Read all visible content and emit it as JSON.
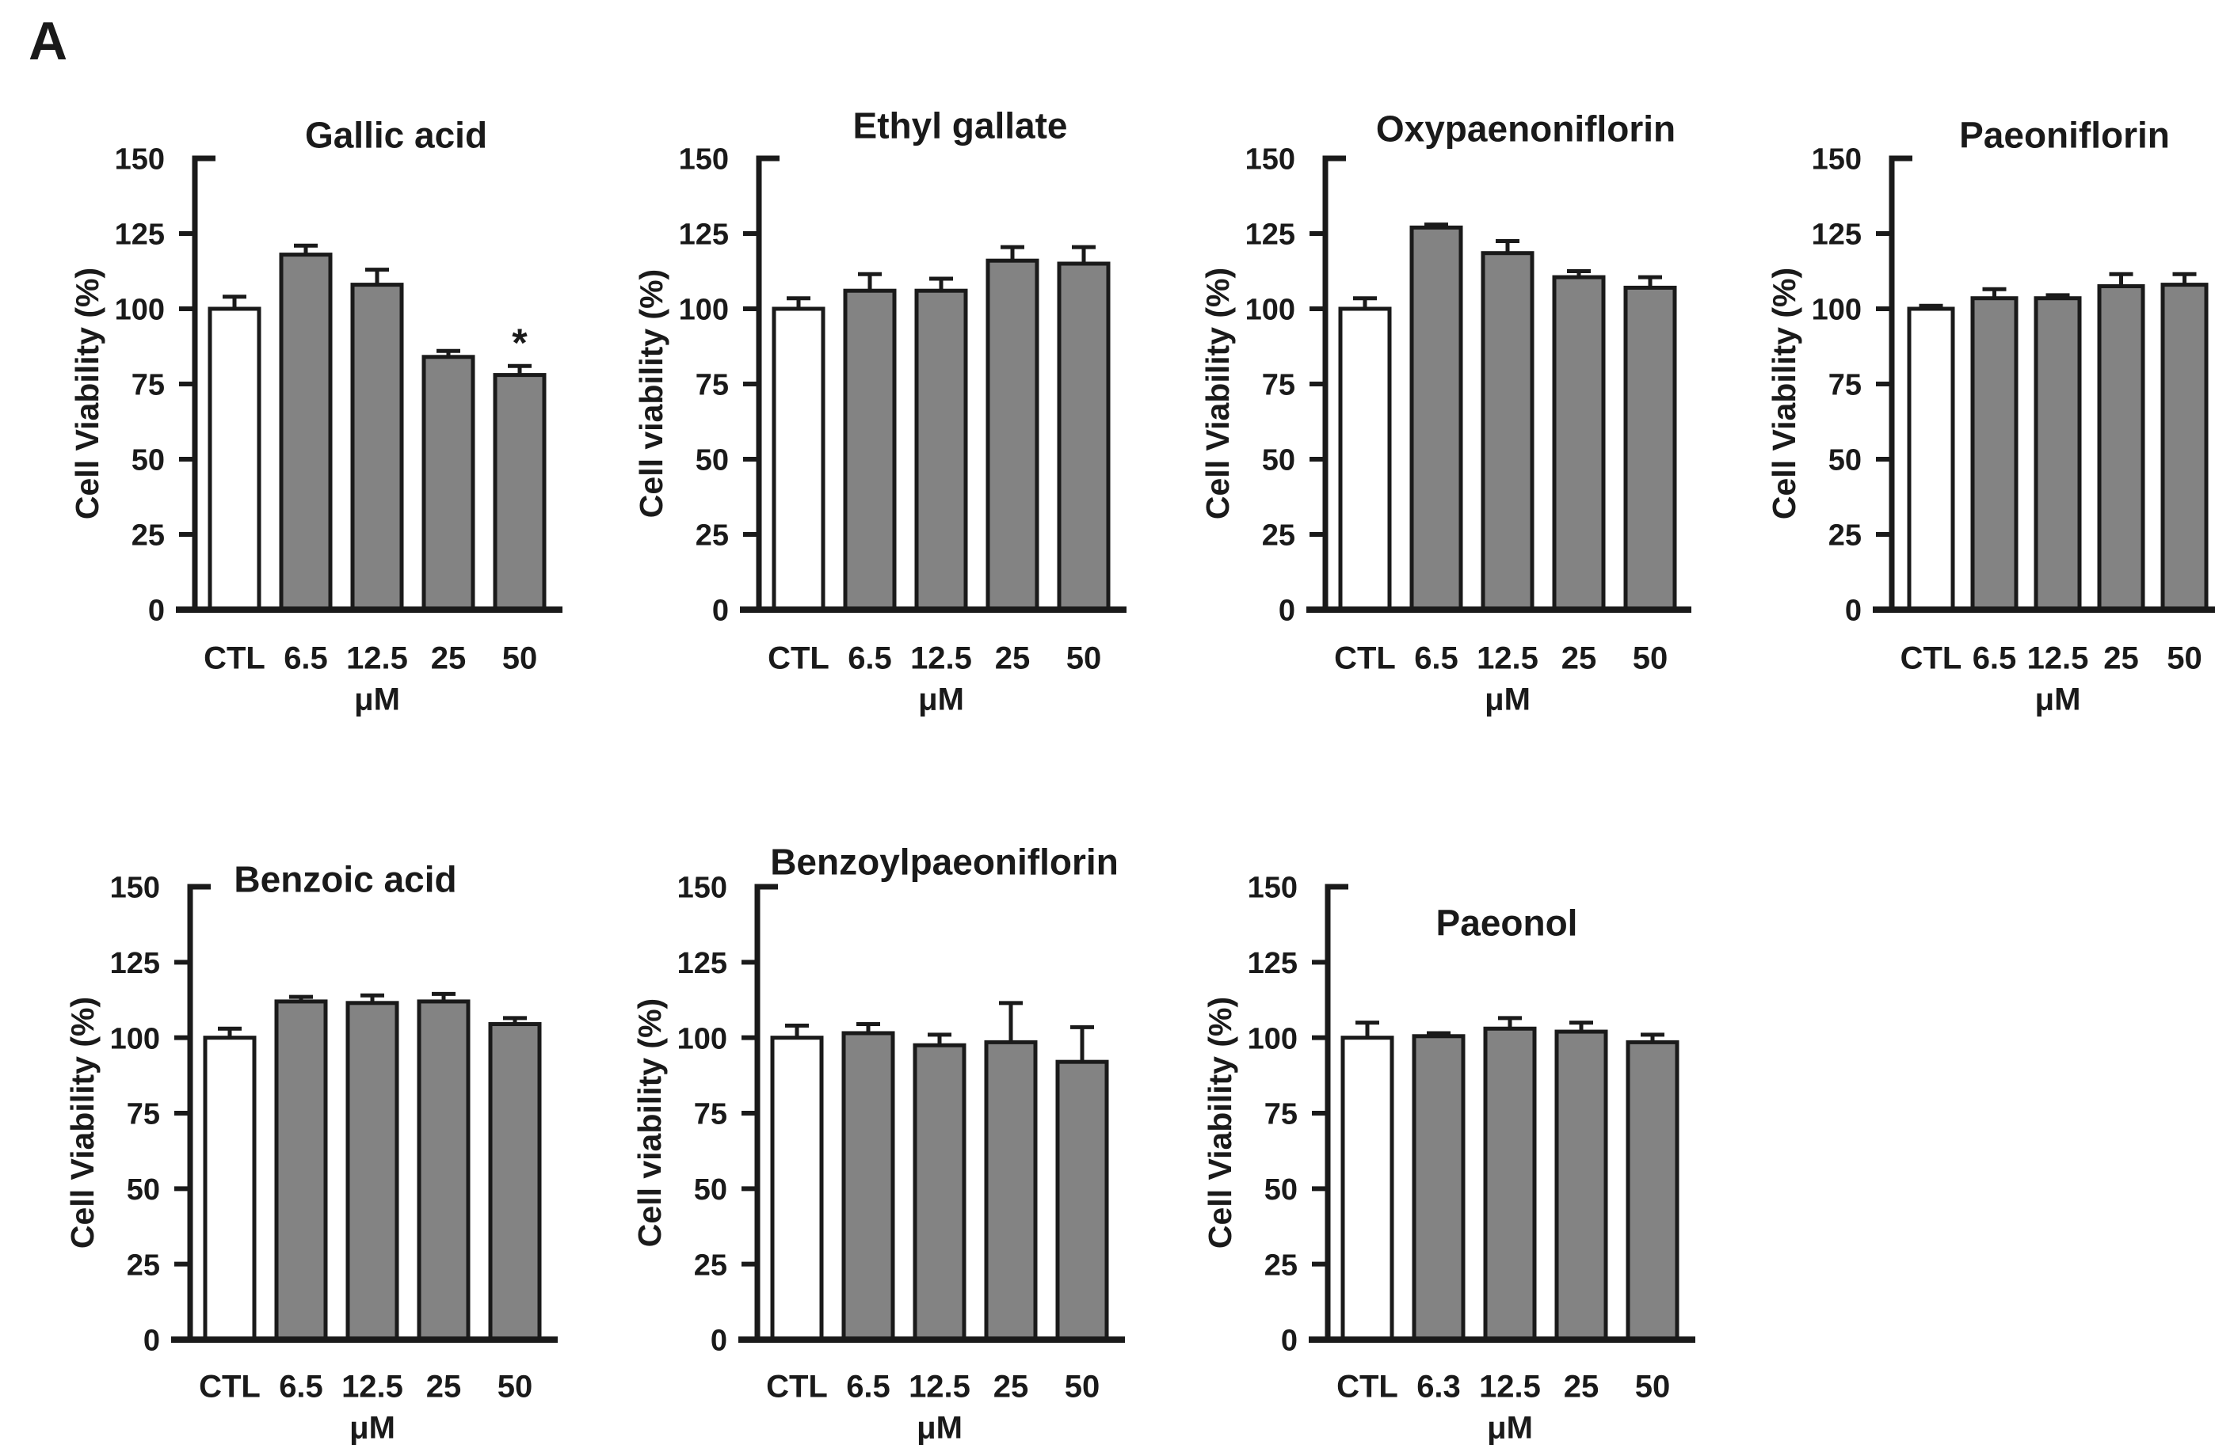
{
  "panel_label": "A",
  "colors": {
    "control_bar_fill": "#ffffff",
    "treated_bar_fill": "#838383",
    "stroke": "#1a1a1a",
    "background": "#ffffff"
  },
  "x_axis_unit": "μM",
  "chart_data": [
    {
      "type": "bar",
      "title": "Gallic acid",
      "ylabel": "Cell Viability (%)",
      "xlabel": "μM",
      "ylim": [
        0,
        150
      ],
      "yticks": [
        0,
        25,
        50,
        75,
        100,
        125,
        150
      ],
      "grid": false,
      "legend": "none",
      "categories": [
        "CTL",
        "6.5",
        "12.5",
        "25",
        "50"
      ],
      "values": [
        100,
        118,
        108,
        84,
        78
      ],
      "errors": [
        4,
        3,
        5,
        2,
        3
      ],
      "significance": [
        "",
        "",
        "",
        "",
        "*"
      ],
      "control_index": 0
    },
    {
      "type": "bar",
      "title": "Ethyl gallate",
      "ylabel": "Cell viability (%)",
      "xlabel": "μM",
      "ylim": [
        0,
        150
      ],
      "yticks": [
        0,
        25,
        50,
        75,
        100,
        125,
        150
      ],
      "grid": false,
      "legend": "none",
      "categories": [
        "CTL",
        "6.5",
        "12.5",
        "25",
        "50"
      ],
      "values": [
        100,
        106,
        106,
        116,
        115
      ],
      "errors": [
        3.5,
        5.5,
        4,
        4.5,
        5.5
      ],
      "significance": [
        "",
        "",
        "",
        "",
        ""
      ],
      "control_index": 0
    },
    {
      "type": "bar",
      "title": "Oxypaenoniflorin",
      "ylabel": "Cell Viability (%)",
      "xlabel": "μM",
      "ylim": [
        0,
        150
      ],
      "yticks": [
        0,
        25,
        50,
        75,
        100,
        125,
        150
      ],
      "grid": false,
      "legend": "none",
      "categories": [
        "CTL",
        "6.5",
        "12.5",
        "25",
        "50"
      ],
      "values": [
        100,
        127,
        118.5,
        110.5,
        107
      ],
      "errors": [
        3.5,
        1,
        4,
        2,
        3.5
      ],
      "significance": [
        "",
        "",
        "",
        "",
        ""
      ],
      "control_index": 0
    },
    {
      "type": "bar",
      "title": "Paeoniflorin",
      "ylabel": "Cell Viability (%)",
      "xlabel": "μM",
      "ylim": [
        0,
        150
      ],
      "yticks": [
        0,
        25,
        50,
        75,
        100,
        125,
        150
      ],
      "grid": false,
      "legend": "none",
      "categories": [
        "CTL",
        "6.5",
        "12.5",
        "25",
        "50"
      ],
      "values": [
        100,
        103.5,
        103.5,
        107.5,
        108
      ],
      "errors": [
        1,
        3,
        1,
        4,
        3.5
      ],
      "significance": [
        "",
        "",
        "",
        "",
        ""
      ],
      "control_index": 0
    },
    {
      "type": "bar",
      "title": "Benzoic acid",
      "ylabel": "Cell Viability (%)",
      "xlabel": "μM",
      "ylim": [
        0,
        150
      ],
      "yticks": [
        0,
        25,
        50,
        75,
        100,
        125,
        150
      ],
      "grid": false,
      "legend": "none",
      "categories": [
        "CTL",
        "6.5",
        "12.5",
        "25",
        "50"
      ],
      "values": [
        100,
        112,
        111.5,
        112,
        104.5
      ],
      "errors": [
        3,
        1.5,
        2.5,
        2.5,
        2
      ],
      "significance": [
        "",
        "",
        "",
        "",
        ""
      ],
      "control_index": 0
    },
    {
      "type": "bar",
      "title": "Benzoylpaeoniflorin",
      "ylabel": "Cell viability (%)",
      "xlabel": "μM",
      "ylim": [
        0,
        150
      ],
      "yticks": [
        0,
        25,
        50,
        75,
        100,
        125,
        150
      ],
      "grid": false,
      "legend": "none",
      "categories": [
        "CTL",
        "6.5",
        "12.5",
        "25",
        "50"
      ],
      "values": [
        100,
        101.5,
        97.5,
        98.5,
        92
      ],
      "errors": [
        4,
        3,
        3.5,
        13,
        11.5
      ],
      "significance": [
        "",
        "",
        "",
        "",
        ""
      ],
      "control_index": 0
    },
    {
      "type": "bar",
      "title": "Paeonol",
      "ylabel": "Cell Viability (%)",
      "xlabel": "μM",
      "ylim": [
        0,
        150
      ],
      "yticks": [
        0,
        25,
        50,
        75,
        100,
        125,
        150
      ],
      "grid": false,
      "legend": "none",
      "categories": [
        "CTL",
        "6.3",
        "12.5",
        "25",
        "50"
      ],
      "values": [
        100,
        100.5,
        103,
        102,
        98.5
      ],
      "errors": [
        5,
        1,
        3.5,
        3,
        2.5
      ],
      "significance": [
        "",
        "",
        "",
        "",
        ""
      ],
      "control_index": 0
    }
  ]
}
